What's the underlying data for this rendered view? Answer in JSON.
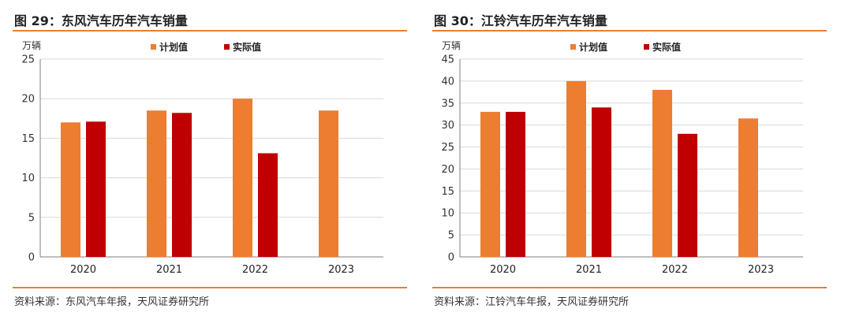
{
  "charts": [
    {
      "figure_title": "图 29：东风汽车历年汽车销量",
      "source": "资料来源：东风汽车年报，天风证券研究所",
      "chart_data": {
        "type": "bar",
        "title": "图 29：东风汽车历年汽车销量",
        "ylabel": "万辆",
        "xlabel": "",
        "categories": [
          "2020",
          "2021",
          "2022",
          "2023"
        ],
        "ylim": [
          0,
          25
        ],
        "yticks": [
          0,
          5,
          10,
          15,
          20,
          25
        ],
        "grid": true,
        "legend_position": "top-center",
        "series": [
          {
            "name": "计划值",
            "color": "#ED7D31",
            "values": [
              17,
              18.5,
              20,
              18.5
            ]
          },
          {
            "name": "实际值",
            "color": "#C00000",
            "values": [
              17.1,
              18.2,
              13.1,
              null
            ]
          }
        ]
      }
    },
    {
      "figure_title": "图 30：江铃汽车历年汽车销量",
      "source": "资料来源：江铃汽车年报，天风证券研究所",
      "chart_data": {
        "type": "bar",
        "title": "图 30：江铃汽车历年汽车销量",
        "ylabel": "万辆",
        "xlabel": "",
        "categories": [
          "2020",
          "2021",
          "2022",
          "2023"
        ],
        "ylim": [
          0,
          45
        ],
        "yticks": [
          0,
          5,
          10,
          15,
          20,
          25,
          30,
          35,
          40,
          45
        ],
        "grid": true,
        "legend_position": "top-center",
        "series": [
          {
            "name": "计划值",
            "color": "#ED7D31",
            "values": [
              33,
              40,
              38,
              31.5
            ]
          },
          {
            "name": "实际值",
            "color": "#C00000",
            "values": [
              33,
              34,
              28,
              null
            ]
          }
        ]
      }
    }
  ]
}
